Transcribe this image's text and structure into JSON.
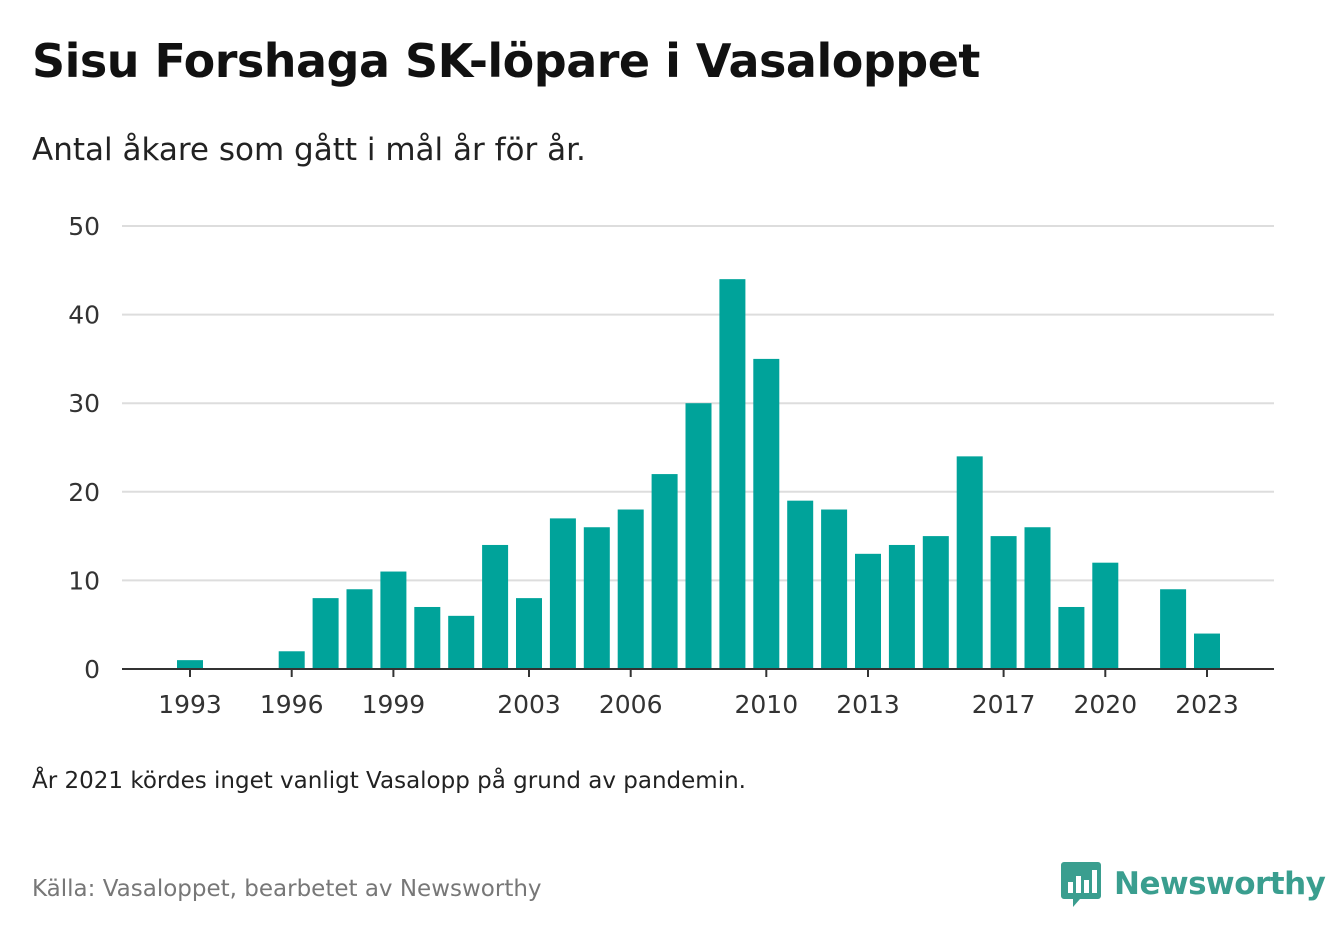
{
  "header": {
    "title": "Sisu Forshaga SK-löpare i Vasaloppet",
    "subtitle": "Antal åkare som gått i mål år för år."
  },
  "footer": {
    "note": "År 2021 kördes inget vanligt Vasalopp på grund av pandemin.",
    "source": "Källa: Vasaloppet, bearbetet av Newsworthy",
    "brand": "Newsworthy",
    "brand_icon": "newsworthy-logo-icon"
  },
  "colors": {
    "bar": "#00a39a",
    "grid": "#dddddd",
    "axis": "#333333",
    "brand": "#3a9e8f"
  },
  "chart_data": {
    "type": "bar",
    "categories": [
      1992,
      1993,
      1994,
      1995,
      1996,
      1997,
      1998,
      1999,
      2000,
      2001,
      2002,
      2003,
      2004,
      2005,
      2006,
      2007,
      2008,
      2009,
      2010,
      2011,
      2012,
      2013,
      2014,
      2015,
      2016,
      2017,
      2018,
      2019,
      2020,
      2021,
      2022,
      2023
    ],
    "values": [
      0,
      1,
      0,
      0,
      2,
      8,
      9,
      11,
      7,
      6,
      14,
      8,
      17,
      16,
      18,
      22,
      30,
      44,
      35,
      19,
      18,
      13,
      14,
      15,
      24,
      15,
      16,
      7,
      12,
      0,
      9,
      4
    ],
    "x_tick_labels": [
      "1993",
      "1996",
      "1999",
      "2003",
      "2006",
      "2010",
      "2013",
      "2017",
      "2020",
      "2023"
    ],
    "y_ticks": [
      0,
      10,
      20,
      30,
      40,
      50
    ],
    "ylim": [
      0,
      50
    ],
    "grid": true,
    "legend": "none"
  }
}
